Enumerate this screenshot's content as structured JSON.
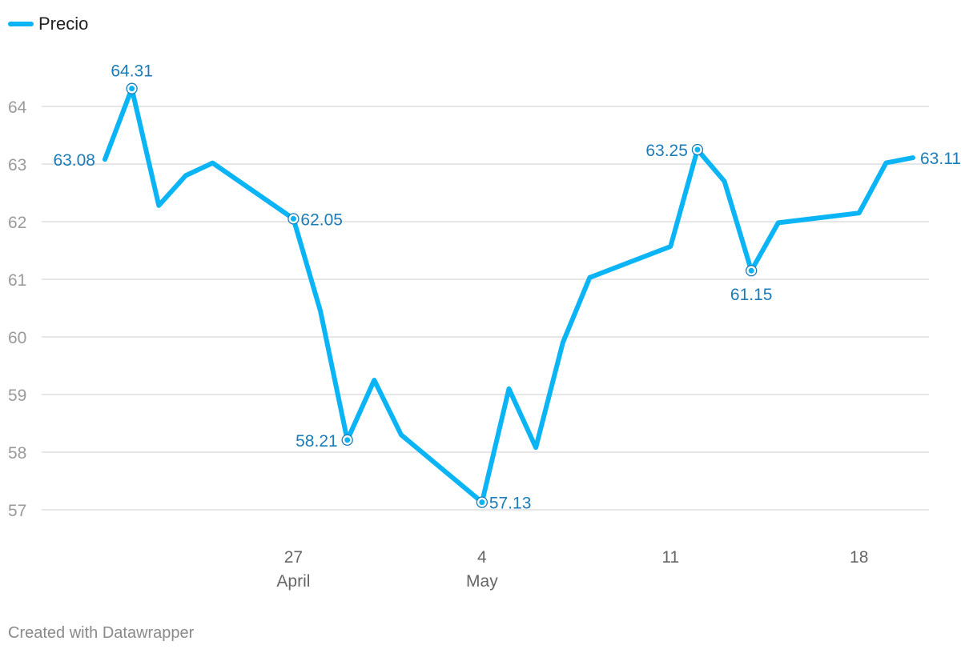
{
  "legend": {
    "label": "Precio"
  },
  "credit": "Created with Datawrapper",
  "colors": {
    "line": "#0ab4f5",
    "label": "#1b7cb8",
    "grid": "#dddddd"
  },
  "chart_data": {
    "type": "line",
    "series": [
      {
        "name": "Precio",
        "x": [
          "2020-04-20",
          "2020-04-21",
          "2020-04-22",
          "2020-04-23",
          "2020-04-24",
          "2020-04-27",
          "2020-04-28",
          "2020-04-29",
          "2020-04-30",
          "2020-05-01",
          "2020-05-04",
          "2020-05-05",
          "2020-05-06",
          "2020-05-07",
          "2020-05-08",
          "2020-05-11",
          "2020-05-12",
          "2020-05-13",
          "2020-05-14",
          "2020-05-15",
          "2020-05-18",
          "2020-05-19",
          "2020-05-20"
        ],
        "values": [
          63.08,
          64.31,
          62.28,
          62.8,
          63.02,
          62.05,
          60.45,
          58.21,
          59.25,
          58.3,
          57.13,
          59.1,
          58.08,
          59.9,
          61.03,
          61.57,
          63.25,
          62.7,
          61.15,
          61.98,
          62.15,
          63.02,
          63.11
        ]
      }
    ],
    "labeled_points": [
      {
        "date": "2020-04-20",
        "value": 63.08,
        "label": "63.08",
        "position": "left"
      },
      {
        "date": "2020-04-21",
        "value": 64.31,
        "label": "64.31",
        "position": "top"
      },
      {
        "date": "2020-04-27",
        "value": 62.05,
        "label": "62.05",
        "position": "right"
      },
      {
        "date": "2020-04-29",
        "value": 58.21,
        "label": "58.21",
        "position": "left"
      },
      {
        "date": "2020-05-04",
        "value": 57.13,
        "label": "57.13",
        "position": "right"
      },
      {
        "date": "2020-05-12",
        "value": 63.25,
        "label": "63.25",
        "position": "left"
      },
      {
        "date": "2020-05-14",
        "value": 61.15,
        "label": "61.15",
        "position": "bottom"
      },
      {
        "date": "2020-05-20",
        "value": 63.11,
        "label": "63.11",
        "position": "right"
      }
    ],
    "y_ticks": [
      57,
      58,
      59,
      60,
      61,
      62,
      63,
      64
    ],
    "x_ticks": [
      {
        "date": "2020-04-27",
        "line1": "27",
        "line2": "April"
      },
      {
        "date": "2020-05-04",
        "line1": "4",
        "line2": "May"
      },
      {
        "date": "2020-05-11",
        "line1": "11",
        "line2": ""
      },
      {
        "date": "2020-05-18",
        "line1": "18",
        "line2": ""
      }
    ],
    "ylim": [
      57,
      64
    ],
    "xlim": [
      "2020-04-20",
      "2020-05-20"
    ],
    "grid": true,
    "legend_position": "top-left",
    "title": "",
    "xlabel": "",
    "ylabel": ""
  }
}
